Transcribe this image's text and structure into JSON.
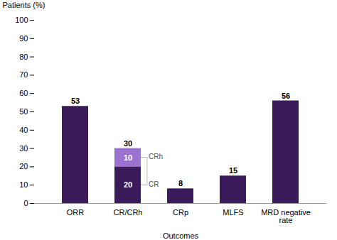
{
  "chart_data": {
    "type": "bar",
    "stacked": true,
    "categories": [
      "ORR",
      "CR/CRh",
      "CRp",
      "MLFS",
      "MRD negative\nrate"
    ],
    "series": [
      {
        "color": "#3b1a5a",
        "values": [
          53,
          20,
          8,
          15,
          56
        ],
        "value_labels": [
          null,
          "20",
          null,
          null,
          null
        ]
      },
      {
        "color": "#9b72cf",
        "values": [
          0,
          10,
          0,
          0,
          0
        ],
        "value_labels": [
          null,
          "10",
          null,
          null,
          null
        ]
      }
    ],
    "totals": [
      53,
      30,
      8,
      15,
      56
    ],
    "annotations": [
      {
        "text": "CRh",
        "x": "CR/CRh",
        "y": 25
      },
      {
        "text": "CR",
        "x": "CR/CRh",
        "y": 10
      }
    ],
    "ylabel": "Patients (%)",
    "xlabel": "Outcomes",
    "ylim": [
      0,
      100
    ],
    "yticks": [
      0,
      10,
      20,
      30,
      40,
      50,
      60,
      70,
      80,
      90,
      100
    ],
    "grid": false,
    "background_color": "#ffffff"
  }
}
